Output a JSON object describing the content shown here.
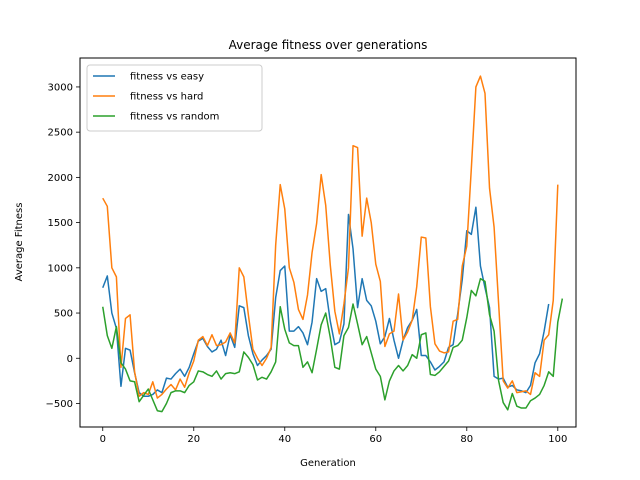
{
  "chart_data": {
    "type": "line",
    "title": "Average fitness over generations",
    "xlabel": "Generation",
    "ylabel": "Average Fitness",
    "xlim": [
      -5,
      104
    ],
    "ylim": [
      -760,
      3320
    ],
    "xticks": [
      0,
      20,
      40,
      60,
      80,
      100
    ],
    "yticks": [
      -500,
      0,
      500,
      1000,
      1500,
      2000,
      2500,
      3000
    ],
    "grid": false,
    "legend_position": "top-left",
    "series": [
      {
        "name": "fitness vs easy",
        "color": "#1f77b4",
        "values": [
          780,
          910,
          500,
          330,
          -310,
          110,
          90,
          -160,
          -380,
          -420,
          -420,
          -400,
          -350,
          -380,
          -220,
          -230,
          -170,
          -120,
          -200,
          -100,
          50,
          190,
          220,
          130,
          70,
          100,
          200,
          30,
          260,
          120,
          580,
          560,
          250,
          50,
          -80,
          -20,
          30,
          100,
          670,
          970,
          1020,
          300,
          300,
          350,
          280,
          150,
          400,
          880,
          740,
          770,
          410,
          150,
          180,
          380,
          1590,
          1210,
          560,
          880,
          640,
          580,
          410,
          160,
          240,
          440,
          200,
          0,
          200,
          340,
          420,
          540,
          30,
          30,
          -40,
          -130,
          -90,
          -40,
          120,
          150,
          490,
          870,
          1410,
          1370,
          1670,
          1020,
          780,
          560,
          -200,
          -230,
          -220,
          -320,
          -300,
          -350,
          -360,
          -380,
          -300,
          -50,
          50,
          300,
          600
        ]
      },
      {
        "name": "fitness vs hard",
        "color": "#ff7f0e",
        "values": [
          1770,
          1680,
          1000,
          900,
          -100,
          440,
          480,
          -150,
          -420,
          -380,
          -400,
          -260,
          -440,
          -400,
          -340,
          -290,
          -350,
          -230,
          -320,
          -160,
          -30,
          200,
          240,
          140,
          260,
          140,
          150,
          180,
          280,
          170,
          1000,
          900,
          480,
          100,
          0,
          -80,
          0,
          120,
          1250,
          1920,
          1650,
          1000,
          840,
          540,
          430,
          700,
          1170,
          1490,
          2030,
          1690,
          1030,
          520,
          270,
          600,
          1000,
          2350,
          2330,
          1350,
          1770,
          1500,
          1040,
          850,
          130,
          270,
          300,
          710,
          200,
          290,
          420,
          790,
          1340,
          1330,
          570,
          160,
          80,
          60,
          70,
          410,
          430,
          1020,
          1240,
          2100,
          3000,
          3120,
          2930,
          1880,
          1450,
          600,
          -250,
          -330,
          -250,
          -380,
          -370,
          -360,
          -400,
          -160,
          -200,
          200,
          260,
          640,
          1920
        ]
      },
      {
        "name": "fitness vs random",
        "color": "#2ca02c",
        "values": [
          570,
          250,
          110,
          350,
          -50,
          -120,
          -250,
          -260,
          -480,
          -410,
          -340,
          -460,
          -580,
          -590,
          -500,
          -380,
          -360,
          -360,
          -380,
          -300,
          -260,
          -140,
          -150,
          -180,
          -200,
          -140,
          -230,
          -170,
          -160,
          -170,
          -150,
          70,
          10,
          -70,
          -240,
          -210,
          -230,
          -150,
          -40,
          570,
          320,
          170,
          140,
          140,
          -100,
          -40,
          -160,
          100,
          370,
          500,
          230,
          -100,
          -120,
          250,
          340,
          600,
          380,
          150,
          240,
          60,
          -120,
          -200,
          -460,
          -250,
          -140,
          -80,
          -140,
          -80,
          40,
          0,
          260,
          280,
          -180,
          -190,
          -150,
          -90,
          -30,
          120,
          140,
          200,
          450,
          750,
          690,
          880,
          850,
          480,
          300,
          -250,
          -490,
          -570,
          -390,
          -530,
          -550,
          -550,
          -470,
          -440,
          -400,
          -300,
          -150,
          -200,
          400,
          660
        ]
      }
    ]
  }
}
